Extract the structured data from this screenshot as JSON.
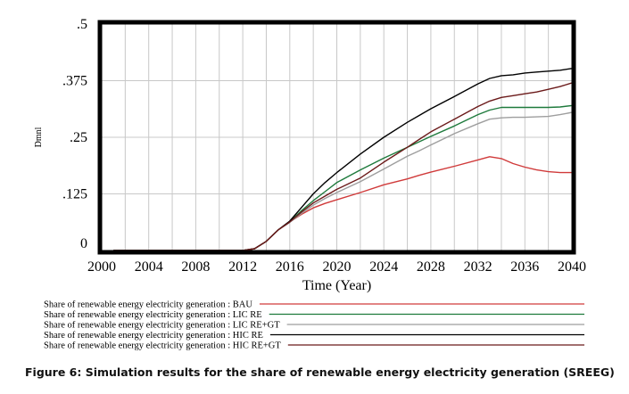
{
  "chart_data": {
    "type": "line",
    "title": "",
    "xlabel": "Time (Year)",
    "ylabel": "Dmnl",
    "xlim": [
      2000,
      2040
    ],
    "ylim": [
      0,
      0.5
    ],
    "x_ticks": [
      "2000",
      "2004",
      "2008",
      "2012",
      "2016",
      "2020",
      "2024",
      "2028",
      "2032",
      "2036",
      "2040"
    ],
    "x_tick_values": [
      2000,
      2004,
      2008,
      2012,
      2016,
      2020,
      2024,
      2028,
      2032,
      2036,
      2040
    ],
    "y_ticks": [
      "0",
      ".125",
      ".25",
      ".375",
      ".5"
    ],
    "y_tick_values": [
      0,
      0.125,
      0.25,
      0.375,
      0.5
    ],
    "grid": true,
    "legend_position": "bottom",
    "x": [
      2001,
      2012,
      2013,
      2014,
      2015,
      2016,
      2017,
      2018,
      2019,
      2020,
      2022,
      2024,
      2026,
      2027,
      2028,
      2030,
      2032,
      2033,
      2034,
      2035,
      2036,
      2037,
      2038,
      2039,
      2040
    ],
    "series": [
      {
        "name": "Share of renewable energy electricity generation : BAU",
        "color": "#d03a3a",
        "values": [
          0,
          0,
          0.004,
          0.02,
          0.045,
          0.063,
          0.08,
          0.094,
          0.104,
          0.112,
          0.128,
          0.145,
          0.158,
          0.166,
          0.173,
          0.186,
          0.2,
          0.207,
          0.203,
          0.192,
          0.184,
          0.178,
          0.174,
          0.172,
          0.172
        ]
      },
      {
        "name": "Share of renewable energy electricity generation : LIC RE",
        "color": "#1e7a3c",
        "values": [
          0,
          0,
          0.004,
          0.02,
          0.045,
          0.064,
          0.088,
          0.11,
          0.13,
          0.15,
          0.178,
          0.204,
          0.228,
          0.24,
          0.252,
          0.275,
          0.3,
          0.31,
          0.316,
          0.316,
          0.316,
          0.316,
          0.316,
          0.317,
          0.32
        ]
      },
      {
        "name": "Share of renewable energy electricity generation : LIC RE+GT",
        "color": "#9e9e9e",
        "values": [
          0,
          0,
          0.004,
          0.02,
          0.045,
          0.062,
          0.082,
          0.1,
          0.115,
          0.128,
          0.152,
          0.18,
          0.208,
          0.22,
          0.233,
          0.258,
          0.28,
          0.29,
          0.293,
          0.294,
          0.294,
          0.295,
          0.296,
          0.3,
          0.305
        ]
      },
      {
        "name": "Share of renewable energy electricity generation : HIC RE",
        "color": "#000000",
        "values": [
          0,
          0,
          0.004,
          0.02,
          0.045,
          0.065,
          0.095,
          0.125,
          0.15,
          0.172,
          0.213,
          0.25,
          0.283,
          0.298,
          0.313,
          0.34,
          0.368,
          0.38,
          0.386,
          0.388,
          0.392,
          0.394,
          0.396,
          0.398,
          0.402
        ]
      },
      {
        "name": "Share of renewable energy electricity generation : HIC RE+GT",
        "color": "#6b1a1a",
        "values": [
          0,
          0,
          0.004,
          0.02,
          0.045,
          0.063,
          0.085,
          0.105,
          0.12,
          0.135,
          0.16,
          0.195,
          0.228,
          0.245,
          0.262,
          0.29,
          0.318,
          0.33,
          0.338,
          0.342,
          0.346,
          0.35,
          0.356,
          0.362,
          0.37
        ]
      }
    ]
  },
  "caption": "Figure 6: Simulation results for the share of renewable energy electricity generation (SREEG)"
}
